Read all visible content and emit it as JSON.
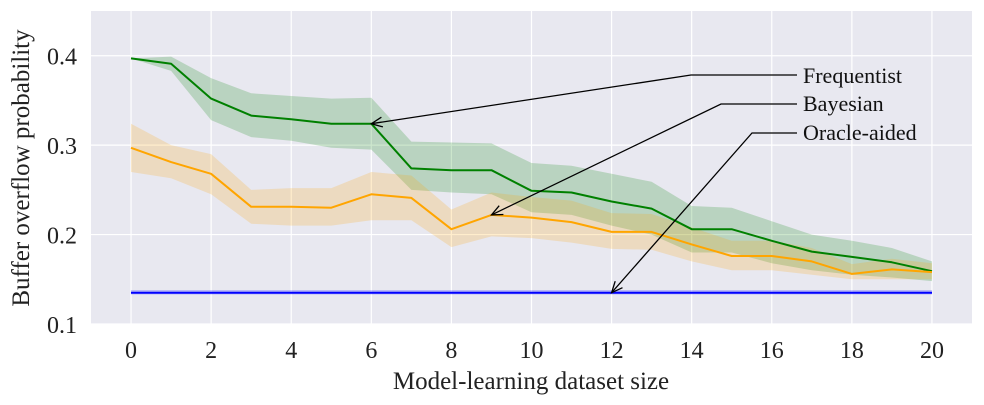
{
  "chart_data": {
    "type": "line",
    "title": "",
    "xlabel": "Model-learning dataset size",
    "ylabel": "Buffer overflow probability",
    "xlim": [
      -1,
      21
    ],
    "ylim": [
      0.1,
      0.45
    ],
    "xticks": [
      0,
      2,
      4,
      6,
      8,
      10,
      12,
      14,
      16,
      18,
      20
    ],
    "yticks": [
      0.1,
      0.2,
      0.3,
      0.4
    ],
    "xtick_labels": [
      "0",
      "2",
      "4",
      "6",
      "8",
      "10",
      "12",
      "14",
      "16",
      "18",
      "20"
    ],
    "ytick_labels": [
      "0.1",
      "0.2",
      "0.3",
      "0.4"
    ],
    "grid": true,
    "background": "#e8e8f0",
    "x": [
      0,
      1,
      2,
      3,
      4,
      5,
      6,
      7,
      8,
      9,
      10,
      11,
      12,
      13,
      14,
      15,
      16,
      17,
      18,
      19,
      20
    ],
    "series": [
      {
        "name": "Frequentist",
        "color": "#008000",
        "values": [
          0.397,
          0.391,
          0.352,
          0.333,
          0.329,
          0.324,
          0.324,
          0.274,
          0.272,
          0.272,
          0.249,
          0.247,
          0.237,
          0.229,
          0.206,
          0.206,
          0.193,
          0.181,
          0.175,
          0.169,
          0.159
        ],
        "lower": [
          0.397,
          0.383,
          0.328,
          0.309,
          0.305,
          0.297,
          0.295,
          0.25,
          0.247,
          0.245,
          0.225,
          0.222,
          0.21,
          0.2,
          0.18,
          0.18,
          0.168,
          0.16,
          0.155,
          0.152,
          0.148
        ],
        "upper": [
          0.397,
          0.399,
          0.375,
          0.358,
          0.355,
          0.352,
          0.353,
          0.304,
          0.303,
          0.302,
          0.28,
          0.277,
          0.268,
          0.259,
          0.232,
          0.23,
          0.215,
          0.2,
          0.193,
          0.185,
          0.17
        ]
      },
      {
        "name": "Bayesian",
        "color": "#ffa500",
        "values": [
          0.297,
          0.281,
          0.268,
          0.231,
          0.231,
          0.23,
          0.245,
          0.241,
          0.206,
          0.222,
          0.219,
          0.214,
          0.203,
          0.203,
          0.189,
          0.176,
          0.176,
          0.17,
          0.156,
          0.161,
          0.158
        ],
        "lower": [
          0.27,
          0.263,
          0.245,
          0.212,
          0.21,
          0.21,
          0.216,
          0.216,
          0.186,
          0.198,
          0.196,
          0.191,
          0.184,
          0.183,
          0.17,
          0.16,
          0.16,
          0.155,
          0.15,
          0.15,
          0.15
        ],
        "upper": [
          0.324,
          0.3,
          0.29,
          0.25,
          0.252,
          0.252,
          0.27,
          0.266,
          0.228,
          0.247,
          0.242,
          0.238,
          0.224,
          0.223,
          0.208,
          0.193,
          0.193,
          0.185,
          0.167,
          0.173,
          0.168
        ]
      },
      {
        "name": "Oracle-aided",
        "color": "#0000ff",
        "values": [
          0.135,
          0.135,
          0.135,
          0.135,
          0.135,
          0.135,
          0.135,
          0.135,
          0.135,
          0.135,
          0.135,
          0.135,
          0.135,
          0.135,
          0.135,
          0.135,
          0.135,
          0.135,
          0.135,
          0.135,
          0.135
        ],
        "lower": [
          0.133,
          0.133,
          0.133,
          0.133,
          0.133,
          0.133,
          0.133,
          0.133,
          0.133,
          0.133,
          0.133,
          0.133,
          0.133,
          0.133,
          0.133,
          0.133,
          0.133,
          0.133,
          0.133,
          0.133,
          0.133
        ],
        "upper": [
          0.138,
          0.138,
          0.138,
          0.138,
          0.138,
          0.138,
          0.138,
          0.138,
          0.138,
          0.138,
          0.138,
          0.138,
          0.138,
          0.138,
          0.138,
          0.138,
          0.138,
          0.138,
          0.138,
          0.138,
          0.138
        ]
      }
    ],
    "annotations": [
      {
        "text": "Frequentist",
        "series": "Frequentist",
        "target": [
          6,
          0.324
        ]
      },
      {
        "text": "Bayesian",
        "series": "Bayesian",
        "target": [
          9,
          0.222
        ]
      },
      {
        "text": "Oracle-aided",
        "series": "Oracle-aided",
        "target": [
          12,
          0.135
        ]
      }
    ]
  }
}
